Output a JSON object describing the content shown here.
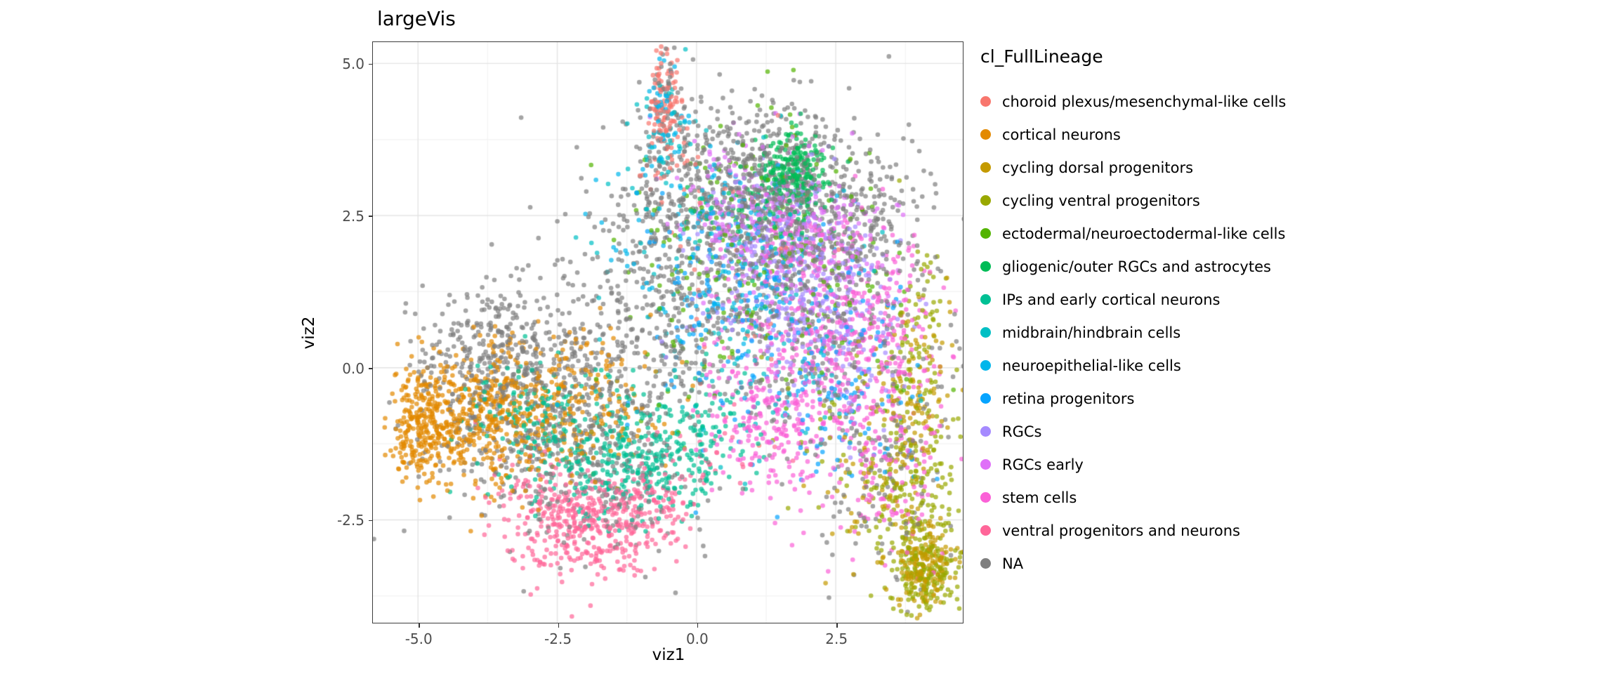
{
  "title": "largeVis",
  "axes": {
    "x": {
      "label": "viz1",
      "ticks": [
        {
          "value": -5.0,
          "label": "-5.0"
        },
        {
          "value": -2.5,
          "label": "-2.5"
        },
        {
          "value": 0.0,
          "label": "0.0"
        },
        {
          "value": 2.5,
          "label": "2.5"
        }
      ]
    },
    "y": {
      "label": "viz2",
      "ticks": [
        {
          "value": 5.0,
          "label": "5.0"
        },
        {
          "value": 2.5,
          "label": "2.5"
        },
        {
          "value": 0.0,
          "label": "0.0"
        },
        {
          "value": -2.5,
          "label": "-2.5"
        }
      ]
    }
  },
  "legend": {
    "title": "cl_FullLineage",
    "items": [
      {
        "label": "choroid plexus/mesenchymal-like cells",
        "color": "#F8766D"
      },
      {
        "label": "cortical neurons",
        "color": "#E38900"
      },
      {
        "label": "cycling dorsal progenitors",
        "color": "#C49A00"
      },
      {
        "label": "cycling ventral progenitors",
        "color": "#99A800"
      },
      {
        "label": "ectodermal/neuroectodermal-like cells",
        "color": "#53B400"
      },
      {
        "label": "gliogenic/outer RGCs and astrocytes",
        "color": "#00BC56"
      },
      {
        "label": "IPs and early cortical neurons",
        "color": "#00C094"
      },
      {
        "label": "midbrain/hindbrain cells",
        "color": "#00BFC4"
      },
      {
        "label": "neuroepithelial-like cells",
        "color": "#00B6EB"
      },
      {
        "label": "retina progenitors",
        "color": "#06A4FF"
      },
      {
        "label": "RGCs",
        "color": "#A58AFF"
      },
      {
        "label": "RGCs early",
        "color": "#DF70F8"
      },
      {
        "label": "stem cells",
        "color": "#FB61D7"
      },
      {
        "label": "ventral progenitors and neurons",
        "color": "#FF6699"
      },
      {
        "label": "NA",
        "color": "#7F7F7F"
      }
    ]
  },
  "panel_style": {
    "grid_major": "#E4E4E4",
    "grid_minor": "#F3F3F3",
    "border": "#3d3d3d",
    "background": "#ffffff"
  },
  "chart_data": {
    "type": "scatter",
    "title": "largeVis",
    "xlabel": "viz1",
    "ylabel": "viz2",
    "xlim": [
      -5.81,
      4.78
    ],
    "ylim": [
      -4.19,
      5.35
    ],
    "x_ticks": [
      -5.0,
      -2.5,
      0.0,
      2.5
    ],
    "y_ticks": [
      5.0,
      2.5,
      0.0,
      -2.5
    ],
    "x_minor": [
      -3.75,
      -1.25,
      1.25,
      3.75
    ],
    "y_minor": [
      3.75,
      1.25,
      -1.25,
      -3.75
    ],
    "grid": true,
    "legend_position": "right",
    "point_radius_px": 3.3,
    "point_alpha": 0.7,
    "seed": 42,
    "cluster_format": [
      "cx",
      "cy",
      "sx",
      "sy",
      "n"
    ],
    "series": [
      {
        "name": "choroid plexus/mesenchymal-like cells",
        "color": "#F8766D",
        "clusters": [
          [
            -0.6,
            4.45,
            0.14,
            0.38,
            90
          ],
          [
            -0.45,
            3.6,
            0.25,
            0.4,
            35
          ],
          [
            0.6,
            1.8,
            1.2,
            1.2,
            30
          ]
        ]
      },
      {
        "name": "cortical neurons",
        "color": "#E38900",
        "clusters": [
          [
            -4.95,
            -0.95,
            0.3,
            0.42,
            260
          ],
          [
            -4.0,
            -0.8,
            0.55,
            0.6,
            260
          ],
          [
            -2.9,
            -0.75,
            0.75,
            0.65,
            260
          ],
          [
            -1.7,
            -0.4,
            0.7,
            0.6,
            90
          ]
        ]
      },
      {
        "name": "cycling dorsal progenitors",
        "color": "#C49A00",
        "clusters": [
          [
            4.1,
            -3.3,
            0.25,
            0.33,
            160
          ],
          [
            3.95,
            -0.6,
            0.3,
            1.1,
            110
          ],
          [
            3.3,
            -2.0,
            0.5,
            0.7,
            70
          ]
        ]
      },
      {
        "name": "cycling ventral progenitors",
        "color": "#99A800",
        "clusters": [
          [
            3.85,
            -2.4,
            0.4,
            0.8,
            200
          ],
          [
            4.15,
            -3.4,
            0.25,
            0.3,
            120
          ],
          [
            4.05,
            0.4,
            0.3,
            0.9,
            90
          ],
          [
            2.9,
            -1.0,
            0.7,
            0.8,
            50
          ]
        ]
      },
      {
        "name": "ectodermal/neuroectodermal-like cells",
        "color": "#53B400",
        "clusters": [
          [
            0.9,
            2.3,
            1.1,
            0.9,
            110
          ],
          [
            2.4,
            0.8,
            0.9,
            0.9,
            60
          ],
          [
            -0.3,
            0.5,
            0.8,
            0.8,
            30
          ]
        ]
      },
      {
        "name": "gliogenic/outer RGCs and astrocytes",
        "color": "#00BC56",
        "clusters": [
          [
            1.7,
            3.2,
            0.3,
            0.32,
            230
          ],
          [
            1.1,
            2.6,
            0.7,
            0.5,
            70
          ]
        ]
      },
      {
        "name": "IPs and early cortical neurons",
        "color": "#00C094",
        "clusters": [
          [
            -1.0,
            -1.6,
            0.75,
            0.45,
            280
          ],
          [
            -2.3,
            -1.1,
            0.7,
            0.5,
            160
          ],
          [
            0.1,
            -0.9,
            0.5,
            0.5,
            70
          ],
          [
            -3.3,
            -0.7,
            0.6,
            0.5,
            60
          ]
        ]
      },
      {
        "name": "midbrain/hindbrain cells",
        "color": "#00BFC4",
        "clusters": [
          [
            0.4,
            1.3,
            1.2,
            1.1,
            110
          ],
          [
            -0.6,
            3.9,
            0.25,
            0.5,
            40
          ],
          [
            1.8,
            -0.3,
            0.8,
            0.8,
            40
          ]
        ]
      },
      {
        "name": "neuroepithelial-like cells",
        "color": "#00B6EB",
        "clusters": [
          [
            0.2,
            2.3,
            0.9,
            0.9,
            120
          ],
          [
            -0.55,
            4.2,
            0.2,
            0.5,
            40
          ],
          [
            1.5,
            1.0,
            0.9,
            0.8,
            40
          ]
        ]
      },
      {
        "name": "retina progenitors",
        "color": "#06A4FF",
        "clusters": [
          [
            1.3,
            0.6,
            1.1,
            0.9,
            140
          ],
          [
            2.6,
            -0.6,
            0.7,
            0.8,
            70
          ],
          [
            0.3,
            1.8,
            0.8,
            0.7,
            40
          ]
        ]
      },
      {
        "name": "RGCs",
        "color": "#A58AFF",
        "clusters": [
          [
            2.0,
            1.3,
            0.85,
            0.8,
            240
          ],
          [
            1.1,
            2.3,
            0.6,
            0.5,
            90
          ],
          [
            2.9,
            0.3,
            0.5,
            0.7,
            60
          ]
        ]
      },
      {
        "name": "RGCs early",
        "color": "#DF70F8",
        "clusters": [
          [
            1.6,
            1.9,
            0.85,
            0.8,
            200
          ],
          [
            0.6,
            2.9,
            0.5,
            0.5,
            70
          ],
          [
            2.4,
            2.3,
            0.5,
            0.5,
            50
          ]
        ]
      },
      {
        "name": "stem cells",
        "color": "#FB61D7",
        "clusters": [
          [
            2.3,
            0.1,
            0.95,
            1.1,
            420
          ],
          [
            1.3,
            -0.9,
            0.65,
            0.55,
            150
          ],
          [
            3.3,
            1.0,
            0.55,
            0.8,
            120
          ],
          [
            3.5,
            -1.7,
            0.45,
            0.9,
            100
          ],
          [
            1.9,
            2.2,
            0.6,
            0.5,
            70
          ]
        ]
      },
      {
        "name": "ventral progenitors and neurons",
        "color": "#FF6699",
        "clusters": [
          [
            -1.9,
            -2.65,
            0.65,
            0.42,
            340
          ],
          [
            -0.9,
            -2.2,
            0.45,
            0.38,
            110
          ],
          [
            -2.9,
            -2.1,
            0.5,
            0.4,
            70
          ],
          [
            0.3,
            -1.4,
            0.5,
            0.4,
            30
          ]
        ]
      },
      {
        "name": "NA",
        "color": "#7F7F7F",
        "clusters": [
          [
            -3.1,
            -0.6,
            1.0,
            0.85,
            520
          ],
          [
            -3.7,
            0.4,
            0.55,
            0.45,
            160
          ],
          [
            -0.9,
            0.7,
            1.0,
            1.0,
            330
          ],
          [
            1.2,
            3.0,
            1.1,
            0.75,
            650
          ],
          [
            2.1,
            1.0,
            1.0,
            1.1,
            320
          ],
          [
            -0.55,
            4.1,
            0.22,
            0.6,
            60
          ],
          [
            3.2,
            -1.6,
            0.55,
            1.0,
            130
          ],
          [
            -1.6,
            -2.0,
            0.9,
            0.6,
            130
          ],
          [
            0.3,
            2.0,
            0.9,
            1.0,
            200
          ],
          [
            2.9,
            2.3,
            0.6,
            0.6,
            120
          ]
        ]
      }
    ]
  }
}
